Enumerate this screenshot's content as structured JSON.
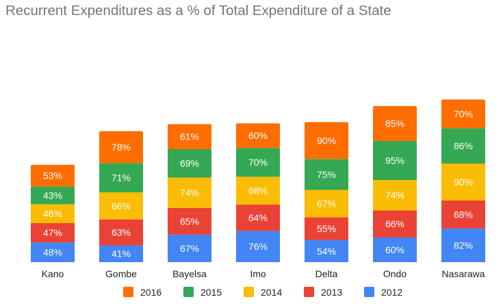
{
  "chart_data": {
    "type": "bar",
    "stacked": true,
    "title": "Recurrent Expenditures as a % of Total Expenditure of a State",
    "categories": [
      "Kano",
      "Gombe",
      "Bayelsa",
      "Imo",
      "Delta",
      "Ondo",
      "Nasarawa"
    ],
    "series": [
      {
        "name": "2012",
        "color": "#4285F4",
        "values": [
          48,
          41,
          67,
          76,
          54,
          60,
          82
        ]
      },
      {
        "name": "2013",
        "color": "#EA4335",
        "values": [
          47,
          63,
          65,
          64,
          55,
          66,
          68
        ]
      },
      {
        "name": "2014",
        "color": "#FBBC04",
        "values": [
          46,
          66,
          74,
          68,
          67,
          74,
          90
        ]
      },
      {
        "name": "2015",
        "color": "#34A853",
        "values": [
          43,
          71,
          69,
          70,
          75,
          95,
          86
        ]
      },
      {
        "name": "2016",
        "color": "#FF6D01",
        "values": [
          53,
          78,
          61,
          60,
          90,
          85,
          70
        ]
      }
    ],
    "label_suffix": "%",
    "legend": {
      "position": "bottom",
      "order": [
        "2016",
        "2015",
        "2014",
        "2013",
        "2012"
      ]
    },
    "grid": false,
    "xlabel": "",
    "ylabel": ""
  }
}
